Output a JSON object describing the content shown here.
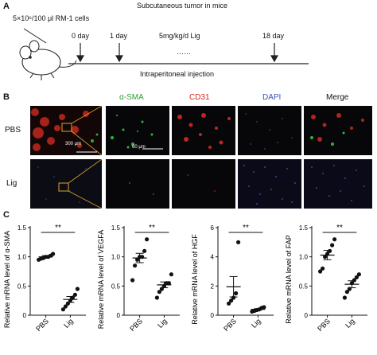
{
  "panels": {
    "a": "A",
    "b": "B",
    "c": "C"
  },
  "panel_a": {
    "title": "Subcutaneous tumor in mice",
    "cells": "5×10⁶/100 μl RM-1 cells",
    "day0": "0 day",
    "day1": "1 day",
    "dose": "5mg/kg/d Lig",
    "dots": "……",
    "day18": "18 day",
    "route": "Intraperitoneal injection"
  },
  "panel_b": {
    "channels": {
      "asma": "α-SMA",
      "cd31": "CD31",
      "dapi": "DAPI",
      "merge": "Merge"
    },
    "rows": {
      "pbs": "PBS",
      "lig": "Lig"
    },
    "scale_large": "300 μm",
    "scale_small": "60 μm",
    "colors": {
      "asma": "#2e9e3a",
      "cd31": "#d7261e",
      "dapi": "#3a4fc0"
    }
  },
  "chart_data": [
    {
      "type": "scatter",
      "ylabel": "Relative mRNA level of α-SMA",
      "categories": [
        "PBS",
        "Lig"
      ],
      "ylim": [
        0,
        1.5
      ],
      "yticks": [
        "0",
        "0.5",
        "1.0",
        "1.5"
      ],
      "significance": "**",
      "groups": [
        {
          "name": "PBS",
          "values": [
            0.95,
            0.97,
            0.98,
            1.0,
            1.0,
            1.02,
            1.05
          ],
          "mean": 1.0,
          "sem": 0.02
        },
        {
          "name": "Lig",
          "values": [
            0.1,
            0.15,
            0.2,
            0.25,
            0.3,
            0.35,
            0.45
          ],
          "mean": 0.27,
          "sem": 0.05
        }
      ]
    },
    {
      "type": "scatter",
      "ylabel": "Relative mRNA level of VEGFA",
      "categories": [
        "PBS",
        "Lig"
      ],
      "ylim": [
        0,
        1.5
      ],
      "yticks": [
        "0",
        "0.5",
        "1.0",
        "1.5"
      ],
      "significance": "**",
      "groups": [
        {
          "name": "PBS",
          "values": [
            0.6,
            0.85,
            0.95,
            1.0,
            1.0,
            1.1,
            1.3
          ],
          "mean": 0.98,
          "sem": 0.08
        },
        {
          "name": "Lig",
          "values": [
            0.3,
            0.4,
            0.45,
            0.5,
            0.55,
            0.55,
            0.7
          ],
          "mean": 0.52,
          "sem": 0.05
        }
      ]
    },
    {
      "type": "scatter",
      "ylabel": "Relative mRNA level of HGF",
      "categories": [
        "PBS",
        "Lig"
      ],
      "ylim": [
        0,
        6
      ],
      "yticks": [
        "0",
        "2",
        "4",
        "6"
      ],
      "significance": "**",
      "groups": [
        {
          "name": "PBS",
          "values": [
            0.8,
            1.0,
            1.2,
            1.5,
            5.0
          ],
          "mean": 1.95,
          "sem": 0.7
        },
        {
          "name": "Lig",
          "values": [
            0.25,
            0.3,
            0.35,
            0.4,
            0.5,
            0.55
          ],
          "mean": 0.4,
          "sem": 0.05
        }
      ]
    },
    {
      "type": "scatter",
      "ylabel": "Relative mRNA level of FAP",
      "categories": [
        "PBS",
        "Lig"
      ],
      "ylim": [
        0,
        1.5
      ],
      "yticks": [
        "0",
        "0.5",
        "1.0",
        "1.5"
      ],
      "significance": "**",
      "groups": [
        {
          "name": "PBS",
          "values": [
            0.75,
            0.8,
            1.0,
            1.05,
            1.1,
            1.2,
            1.3
          ],
          "mean": 1.03,
          "sem": 0.08
        },
        {
          "name": "Lig",
          "values": [
            0.3,
            0.4,
            0.45,
            0.55,
            0.6,
            0.65,
            0.7
          ],
          "mean": 0.53,
          "sem": 0.06
        }
      ]
    }
  ]
}
